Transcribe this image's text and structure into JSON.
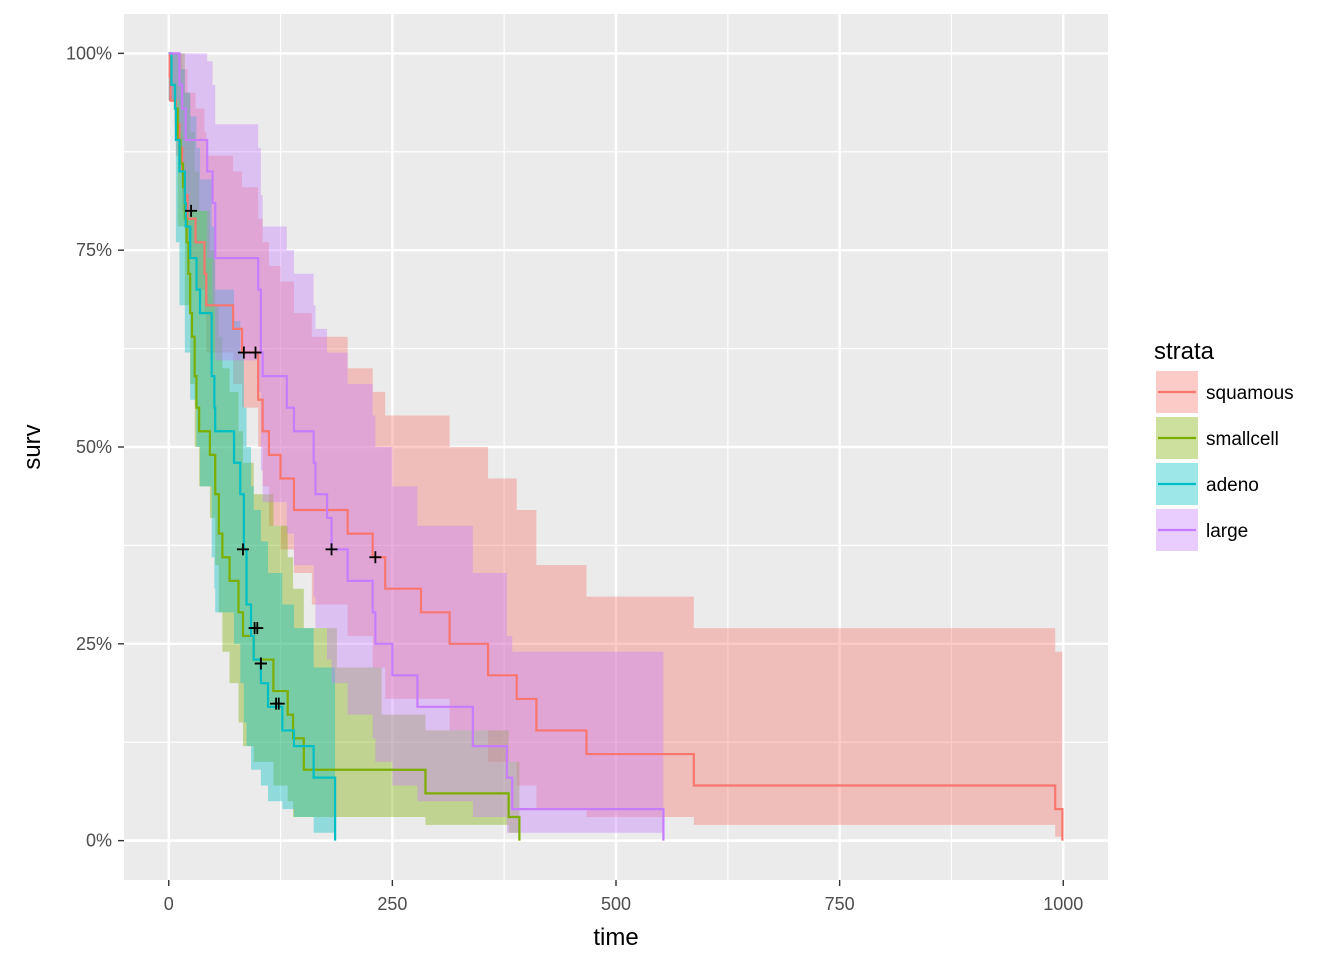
{
  "chart_data": {
    "type": "line",
    "xlabel": "time",
    "ylabel": "surv",
    "xlim": [
      -50,
      1050
    ],
    "ylim": [
      -0.05,
      1.05
    ],
    "x_ticks": [
      0,
      250,
      500,
      750,
      1000
    ],
    "x_tick_labels": [
      "0",
      "250",
      "500",
      "750",
      "1000"
    ],
    "y_ticks": [
      0,
      0.25,
      0.5,
      0.75,
      1.0
    ],
    "y_tick_labels": [
      "0%",
      "25%",
      "50%",
      "75%",
      "100%"
    ],
    "grid": true,
    "legend": {
      "title": "strata",
      "position": "right"
    },
    "series": [
      {
        "name": "squamous",
        "color": "#F8766D",
        "step": [
          [
            0,
            1
          ],
          [
            1,
            0.97
          ],
          [
            2,
            0.94
          ],
          [
            8,
            0.91
          ],
          [
            12,
            0.88
          ],
          [
            15,
            0.85
          ],
          [
            18,
            0.82
          ],
          [
            21,
            0.79
          ],
          [
            30,
            0.76
          ],
          [
            40,
            0.72
          ],
          [
            42,
            0.68
          ],
          [
            72,
            0.65
          ],
          [
            82,
            0.62
          ],
          [
            100,
            0.56
          ],
          [
            105,
            0.52
          ],
          [
            112,
            0.49
          ],
          [
            125,
            0.46
          ],
          [
            140,
            0.42
          ],
          [
            200,
            0.39
          ],
          [
            228,
            0.36
          ],
          [
            242,
            0.32
          ],
          [
            282,
            0.29
          ],
          [
            314,
            0.25
          ],
          [
            357,
            0.21
          ],
          [
            389,
            0.18
          ],
          [
            411,
            0.14
          ],
          [
            467,
            0.11
          ],
          [
            587,
            0.07
          ],
          [
            991,
            0.04
          ],
          [
            999,
            0.0
          ]
        ],
        "upper": [
          [
            0,
            1
          ],
          [
            8,
            1
          ],
          [
            15,
            0.98
          ],
          [
            21,
            0.95
          ],
          [
            30,
            0.93
          ],
          [
            40,
            0.9
          ],
          [
            42,
            0.87
          ],
          [
            72,
            0.85
          ],
          [
            82,
            0.83
          ],
          [
            100,
            0.79
          ],
          [
            105,
            0.76
          ],
          [
            112,
            0.73
          ],
          [
            125,
            0.71
          ],
          [
            140,
            0.67
          ],
          [
            160,
            0.64
          ],
          [
            200,
            0.6
          ],
          [
            228,
            0.57
          ],
          [
            242,
            0.54
          ],
          [
            314,
            0.5
          ],
          [
            357,
            0.46
          ],
          [
            389,
            0.42
          ],
          [
            411,
            0.35
          ],
          [
            467,
            0.31
          ],
          [
            587,
            0.27
          ],
          [
            991,
            0.24
          ],
          [
            999,
            0.24
          ]
        ],
        "lower": [
          [
            0,
            0.94
          ],
          [
            8,
            0.87
          ],
          [
            15,
            0.8
          ],
          [
            21,
            0.74
          ],
          [
            30,
            0.7
          ],
          [
            40,
            0.67
          ],
          [
            42,
            0.62
          ],
          [
            72,
            0.58
          ],
          [
            82,
            0.55
          ],
          [
            100,
            0.5
          ],
          [
            105,
            0.45
          ],
          [
            112,
            0.4
          ],
          [
            125,
            0.37
          ],
          [
            140,
            0.34
          ],
          [
            160,
            0.3
          ],
          [
            200,
            0.26
          ],
          [
            228,
            0.22
          ],
          [
            242,
            0.18
          ],
          [
            314,
            0.14
          ],
          [
            357,
            0.1
          ],
          [
            389,
            0.07
          ],
          [
            411,
            0.04
          ],
          [
            467,
            0.03
          ],
          [
            587,
            0.02
          ],
          [
            991,
            0.005
          ],
          [
            999,
            0.005
          ]
        ],
        "censor": [
          [
            84,
            0.62
          ],
          [
            97,
            0.62
          ],
          [
            182,
            0.37
          ],
          [
            231,
            0.36
          ]
        ]
      },
      {
        "name": "smallcell",
        "color": "#7CAE00",
        "step": [
          [
            0,
            1
          ],
          [
            3,
            0.96
          ],
          [
            7,
            0.93
          ],
          [
            10,
            0.89
          ],
          [
            13,
            0.86
          ],
          [
            16,
            0.83
          ],
          [
            18,
            0.79
          ],
          [
            20,
            0.76
          ],
          [
            22,
            0.72
          ],
          [
            24,
            0.67
          ],
          [
            26,
            0.64
          ],
          [
            29,
            0.59
          ],
          [
            31,
            0.55
          ],
          [
            34,
            0.52
          ],
          [
            46,
            0.49
          ],
          [
            52,
            0.44
          ],
          [
            56,
            0.39
          ],
          [
            60,
            0.36
          ],
          [
            68,
            0.33
          ],
          [
            78,
            0.29
          ],
          [
            83,
            0.26
          ],
          [
            95,
            0.23
          ],
          [
            117,
            0.19
          ],
          [
            133,
            0.16
          ],
          [
            139,
            0.13
          ],
          [
            151,
            0.09
          ],
          [
            287,
            0.06
          ],
          [
            380,
            0.03
          ],
          [
            392,
            0.0
          ]
        ],
        "upper": [
          [
            0,
            1
          ],
          [
            10,
            1
          ],
          [
            18,
            0.95
          ],
          [
            24,
            0.9
          ],
          [
            29,
            0.85
          ],
          [
            34,
            0.8
          ],
          [
            46,
            0.75
          ],
          [
            52,
            0.68
          ],
          [
            56,
            0.64
          ],
          [
            60,
            0.6
          ],
          [
            68,
            0.57
          ],
          [
            78,
            0.52
          ],
          [
            83,
            0.48
          ],
          [
            95,
            0.44
          ],
          [
            117,
            0.4
          ],
          [
            133,
            0.36
          ],
          [
            139,
            0.32
          ],
          [
            151,
            0.27
          ],
          [
            188,
            0.22
          ],
          [
            238,
            0.16
          ],
          [
            287,
            0.14
          ],
          [
            380,
            0.1
          ],
          [
            392,
            0.1
          ]
        ],
        "lower": [
          [
            0,
            0.94
          ],
          [
            10,
            0.78
          ],
          [
            18,
            0.68
          ],
          [
            24,
            0.58
          ],
          [
            29,
            0.5
          ],
          [
            34,
            0.45
          ],
          [
            46,
            0.41
          ],
          [
            52,
            0.35
          ],
          [
            56,
            0.29
          ],
          [
            60,
            0.24
          ],
          [
            68,
            0.2
          ],
          [
            78,
            0.15
          ],
          [
            83,
            0.12
          ],
          [
            95,
            0.1
          ],
          [
            117,
            0.07
          ],
          [
            133,
            0.05
          ],
          [
            139,
            0.03
          ],
          [
            151,
            0.03
          ],
          [
            287,
            0.02
          ],
          [
            380,
            0.01
          ],
          [
            392,
            0.01
          ]
        ],
        "censor": [
          [
            25,
            0.8
          ],
          [
            99,
            0.27
          ],
          [
            103,
            0.225
          ],
          [
            123,
            0.174
          ]
        ]
      },
      {
        "name": "adeno",
        "color": "#00BFC4",
        "step": [
          [
            0,
            1
          ],
          [
            3,
            0.96
          ],
          [
            7,
            0.93
          ],
          [
            8,
            0.89
          ],
          [
            12,
            0.85
          ],
          [
            18,
            0.81
          ],
          [
            19,
            0.78
          ],
          [
            24,
            0.74
          ],
          [
            31,
            0.7
          ],
          [
            35,
            0.67
          ],
          [
            48,
            0.59
          ],
          [
            51,
            0.55
          ],
          [
            52,
            0.52
          ],
          [
            73,
            0.48
          ],
          [
            80,
            0.44
          ],
          [
            84,
            0.37
          ],
          [
            87,
            0.3
          ],
          [
            92,
            0.26
          ],
          [
            95,
            0.23
          ],
          [
            103,
            0.2
          ],
          [
            111,
            0.17
          ],
          [
            127,
            0.14
          ],
          [
            140,
            0.12
          ],
          [
            162,
            0.08
          ],
          [
            186,
            0.04
          ],
          [
            186,
            0.0
          ]
        ],
        "upper": [
          [
            0,
            1
          ],
          [
            8,
            1
          ],
          [
            12,
            0.98
          ],
          [
            18,
            0.95
          ],
          [
            24,
            0.92
          ],
          [
            31,
            0.88
          ],
          [
            35,
            0.84
          ],
          [
            48,
            0.78
          ],
          [
            51,
            0.74
          ],
          [
            52,
            0.7
          ],
          [
            73,
            0.66
          ],
          [
            80,
            0.62
          ],
          [
            84,
            0.55
          ],
          [
            87,
            0.5
          ],
          [
            92,
            0.45
          ],
          [
            95,
            0.42
          ],
          [
            103,
            0.38
          ],
          [
            111,
            0.34
          ],
          [
            127,
            0.3
          ],
          [
            140,
            0.27
          ],
          [
            162,
            0.22
          ],
          [
            186,
            0.17
          ],
          [
            186,
            0.17
          ]
        ],
        "lower": [
          [
            0,
            0.94
          ],
          [
            8,
            0.76
          ],
          [
            12,
            0.68
          ],
          [
            18,
            0.62
          ],
          [
            24,
            0.56
          ],
          [
            31,
            0.5
          ],
          [
            35,
            0.45
          ],
          [
            48,
            0.36
          ],
          [
            51,
            0.32
          ],
          [
            52,
            0.29
          ],
          [
            73,
            0.25
          ],
          [
            80,
            0.2
          ],
          [
            84,
            0.15
          ],
          [
            87,
            0.12
          ],
          [
            92,
            0.09
          ],
          [
            103,
            0.07
          ],
          [
            111,
            0.05
          ],
          [
            127,
            0.04
          ],
          [
            140,
            0.03
          ],
          [
            162,
            0.01
          ],
          [
            186,
            0.0
          ]
        ],
        "censor": [
          [
            83,
            0.37
          ],
          [
            96,
            0.27
          ],
          [
            103,
            0.225
          ],
          [
            120,
            0.174
          ]
        ]
      },
      {
        "name": "large",
        "color": "#C77CFF",
        "step": [
          [
            0,
            1
          ],
          [
            12,
            0.96
          ],
          [
            15,
            0.93
          ],
          [
            19,
            0.89
          ],
          [
            43,
            0.85
          ],
          [
            49,
            0.81
          ],
          [
            52,
            0.74
          ],
          [
            100,
            0.7
          ],
          [
            103,
            0.62
          ],
          [
            105,
            0.59
          ],
          [
            132,
            0.55
          ],
          [
            140,
            0.52
          ],
          [
            162,
            0.48
          ],
          [
            164,
            0.44
          ],
          [
            177,
            0.41
          ],
          [
            182,
            0.37
          ],
          [
            200,
            0.33
          ],
          [
            228,
            0.29
          ],
          [
            231,
            0.25
          ],
          [
            250,
            0.21
          ],
          [
            278,
            0.17
          ],
          [
            340,
            0.12
          ],
          [
            378,
            0.08
          ],
          [
            384,
            0.04
          ],
          [
            553,
            0.04
          ],
          [
            553,
            0.0
          ]
        ],
        "upper": [
          [
            0,
            1
          ],
          [
            19,
            1
          ],
          [
            43,
            0.99
          ],
          [
            49,
            0.96
          ],
          [
            52,
            0.91
          ],
          [
            100,
            0.88
          ],
          [
            103,
            0.82
          ],
          [
            105,
            0.78
          ],
          [
            132,
            0.75
          ],
          [
            140,
            0.72
          ],
          [
            162,
            0.68
          ],
          [
            164,
            0.65
          ],
          [
            177,
            0.62
          ],
          [
            200,
            0.58
          ],
          [
            228,
            0.54
          ],
          [
            231,
            0.5
          ],
          [
            250,
            0.45
          ],
          [
            278,
            0.4
          ],
          [
            340,
            0.34
          ],
          [
            378,
            0.26
          ],
          [
            384,
            0.24
          ],
          [
            553,
            0.24
          ]
        ],
        "lower": [
          [
            0,
            0.94
          ],
          [
            12,
            0.9
          ],
          [
            15,
            0.85
          ],
          [
            19,
            0.8
          ],
          [
            43,
            0.74
          ],
          [
            49,
            0.68
          ],
          [
            52,
            0.61
          ],
          [
            100,
            0.57
          ],
          [
            103,
            0.47
          ],
          [
            105,
            0.43
          ],
          [
            132,
            0.39
          ],
          [
            140,
            0.35
          ],
          [
            162,
            0.31
          ],
          [
            164,
            0.27
          ],
          [
            177,
            0.23
          ],
          [
            182,
            0.2
          ],
          [
            200,
            0.16
          ],
          [
            228,
            0.13
          ],
          [
            231,
            0.1
          ],
          [
            250,
            0.07
          ],
          [
            278,
            0.05
          ],
          [
            340,
            0.03
          ],
          [
            378,
            0.01
          ],
          [
            553,
            0.005
          ]
        ],
        "censor": []
      }
    ]
  }
}
